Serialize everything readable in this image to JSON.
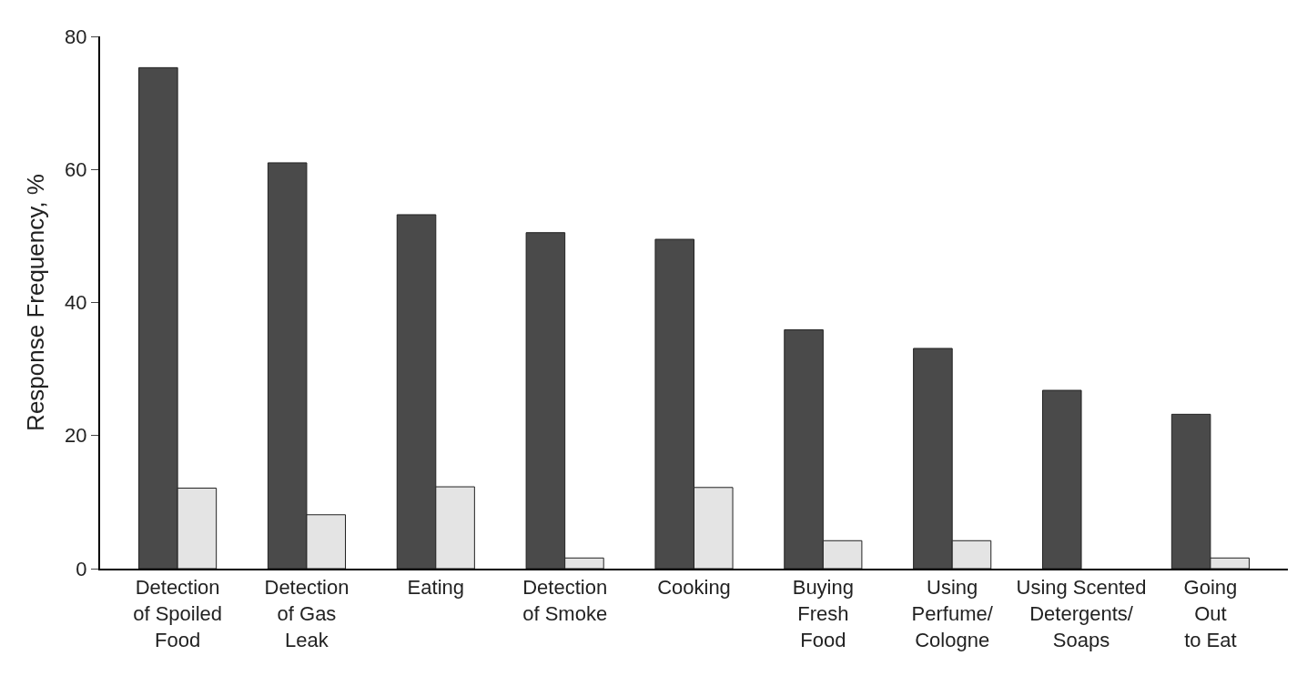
{
  "chart_data": {
    "type": "bar",
    "ylabel": "Response Frequency, %",
    "categories": [
      "Detection\nof Spoiled\nFood",
      "Detection\nof Gas\nLeak",
      "Eating",
      "Detection\nof Smoke",
      "Cooking",
      "Buying\nFresh\nFood",
      "Using\nPerfume/\nCologne",
      "Using Scented\nDetergents/\nSoaps",
      "Going\nOut\nto Eat"
    ],
    "series": [
      {
        "color": "#4a4a4a",
        "values": [
          75.3,
          61.0,
          53.2,
          50.5,
          49.5,
          35.9,
          33.1,
          26.8,
          23.2
        ]
      },
      {
        "color": "#e4e4e4",
        "values": [
          12.1,
          8.1,
          12.3,
          1.6,
          12.2,
          4.2,
          4.2,
          null,
          1.6
        ]
      }
    ],
    "ylim": [
      0,
      80
    ],
    "yticks": [
      0,
      20,
      40,
      60,
      80
    ]
  }
}
